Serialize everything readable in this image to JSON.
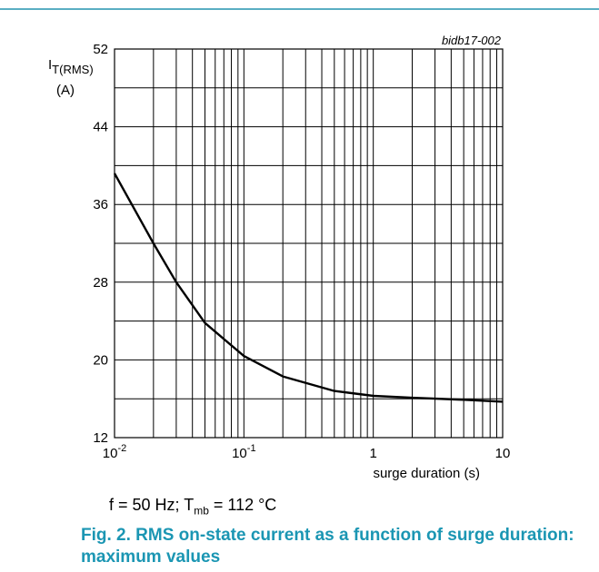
{
  "chart_data": {
    "type": "line",
    "ref_code": "bidb17-002",
    "ylabel_main": "I",
    "ylabel_sub": "T(RMS)",
    "ylabel_unit": "(A)",
    "xlabel": "surge duration  (s)",
    "x_scale": "log",
    "xlim": [
      0.01,
      10
    ],
    "ylim": [
      12,
      52
    ],
    "grid": true,
    "y_ticks": [
      12,
      20,
      28,
      36,
      44,
      52
    ],
    "y_tick_labels": [
      "12",
      "20",
      "28",
      "36",
      "44",
      "52"
    ],
    "x_ticks": [
      {
        "value": 0.01,
        "base": "10",
        "exp": "-2"
      },
      {
        "value": 0.1,
        "base": "10",
        "exp": "-1"
      },
      {
        "value": 1,
        "base": "1",
        "exp": ""
      },
      {
        "value": 10,
        "base": "10",
        "exp": ""
      }
    ],
    "series": [
      {
        "x": [
          0.01,
          0.02,
          0.03,
          0.05,
          0.1,
          0.2,
          0.5,
          1,
          2,
          5,
          10
        ],
        "y": [
          39.2,
          32.0,
          28.0,
          23.8,
          20.4,
          18.3,
          16.8,
          16.3,
          16.1,
          15.9,
          15.7
        ]
      }
    ]
  },
  "conditions": {
    "prefix": "f = 50 Hz; T",
    "sub": "mb",
    "suffix": " = 112 °C"
  },
  "caption": "Fig. 2. RMS on-state current as a function of surge duration: maximum values"
}
